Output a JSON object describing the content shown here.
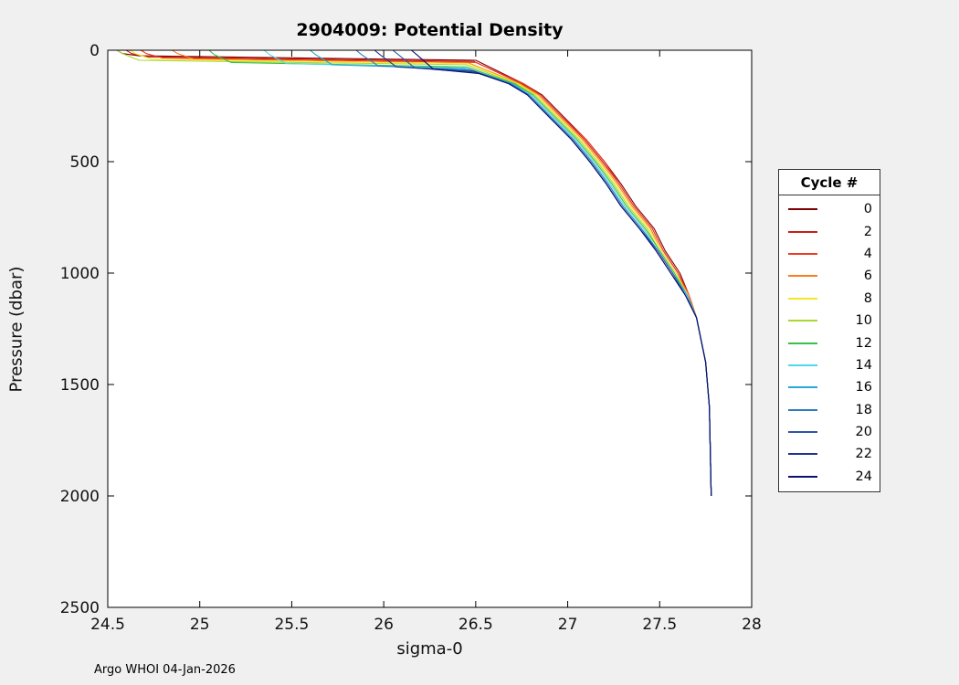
{
  "figure": {
    "title": "2904009: Potential Density",
    "xlabel": "sigma-0",
    "ylabel": "Pressure (dbar)",
    "footer": "Argo WHOI 04-Jan-2026",
    "background": "#f0f0f0",
    "plot_background": "#ffffff"
  },
  "legend": {
    "title": "Cycle #"
  },
  "chart_data": {
    "type": "line",
    "title": "2904009: Potential Density",
    "xlabel": "sigma-0",
    "ylabel": "Pressure (dbar)",
    "xlim": [
      24.5,
      28
    ],
    "ylim": [
      0,
      2500
    ],
    "y_reversed": true,
    "grid": false,
    "legend_position": "outside-right",
    "legend_title": "Cycle #",
    "x_ticks": [
      24.5,
      25,
      25.5,
      26,
      26.5,
      27,
      27.5,
      28
    ],
    "x_tick_labels": [
      "24.5",
      "25",
      "25.5",
      "26",
      "26.5",
      "27",
      "27.5",
      "28"
    ],
    "y_ticks": [
      0,
      500,
      1000,
      1500,
      2000,
      2500
    ],
    "y_tick_labels": [
      "0",
      "500",
      "1000",
      "1500",
      "2000",
      "2500"
    ],
    "series": [
      {
        "name": "0",
        "color": "#7f0000",
        "points": [
          [
            24.55,
            0
          ],
          [
            24.58,
            15
          ],
          [
            24.67,
            25
          ],
          [
            26.5,
            45
          ],
          [
            26.76,
            150
          ],
          [
            26.86,
            200
          ],
          [
            26.98,
            300
          ],
          [
            27.1,
            400
          ],
          [
            27.2,
            500
          ],
          [
            27.29,
            600
          ],
          [
            27.37,
            700
          ],
          [
            27.47,
            800
          ],
          [
            27.53,
            900
          ],
          [
            27.61,
            1000
          ],
          [
            27.66,
            1100
          ],
          [
            27.7,
            1200
          ],
          [
            27.75,
            1400
          ],
          [
            27.77,
            1600
          ],
          [
            27.78,
            2000
          ]
        ]
      },
      {
        "name": "2",
        "color": "#c62019",
        "points": [
          [
            24.6,
            0
          ],
          [
            24.63,
            15
          ],
          [
            24.72,
            30
          ],
          [
            26.49,
            50
          ],
          [
            26.75,
            150
          ],
          [
            26.85,
            200
          ],
          [
            26.97,
            300
          ],
          [
            27.09,
            400
          ],
          [
            27.19,
            500
          ],
          [
            27.28,
            600
          ],
          [
            27.36,
            700
          ],
          [
            27.46,
            800
          ],
          [
            27.52,
            900
          ],
          [
            27.6,
            1000
          ],
          [
            27.66,
            1100
          ],
          [
            27.7,
            1200
          ],
          [
            27.75,
            1400
          ],
          [
            27.77,
            1600
          ],
          [
            27.78,
            2000
          ]
        ]
      },
      {
        "name": "4",
        "color": "#ef3b22",
        "points": [
          [
            24.68,
            0
          ],
          [
            24.71,
            15
          ],
          [
            24.8,
            35
          ],
          [
            26.5,
            55
          ],
          [
            26.76,
            150
          ],
          [
            26.85,
            200
          ],
          [
            26.97,
            300
          ],
          [
            27.1,
            400
          ],
          [
            27.2,
            500
          ],
          [
            27.28,
            600
          ],
          [
            27.36,
            700
          ],
          [
            27.46,
            800
          ],
          [
            27.52,
            900
          ],
          [
            27.6,
            1000
          ],
          [
            27.66,
            1100
          ],
          [
            27.7,
            1200
          ],
          [
            27.75,
            1400
          ],
          [
            27.77,
            1600
          ],
          [
            27.78,
            2000
          ]
        ]
      },
      {
        "name": "6",
        "color": "#ff7a1c",
        "points": [
          [
            24.85,
            0
          ],
          [
            24.88,
            15
          ],
          [
            24.97,
            40
          ],
          [
            26.47,
            60
          ],
          [
            26.74,
            150
          ],
          [
            26.84,
            200
          ],
          [
            26.96,
            300
          ],
          [
            27.08,
            400
          ],
          [
            27.18,
            500
          ],
          [
            27.27,
            600
          ],
          [
            27.35,
            700
          ],
          [
            27.45,
            800
          ],
          [
            27.51,
            900
          ],
          [
            27.59,
            1000
          ],
          [
            27.66,
            1100
          ],
          [
            27.7,
            1200
          ],
          [
            27.75,
            1400
          ],
          [
            27.77,
            1600
          ],
          [
            27.78,
            2000
          ]
        ]
      },
      {
        "name": "8",
        "color": "#f5e62a",
        "points": [
          [
            24.62,
            0
          ],
          [
            24.65,
            15
          ],
          [
            24.74,
            40
          ],
          [
            26.46,
            60
          ],
          [
            26.73,
            150
          ],
          [
            26.83,
            200
          ],
          [
            26.95,
            300
          ],
          [
            27.07,
            400
          ],
          [
            27.17,
            500
          ],
          [
            27.26,
            600
          ],
          [
            27.34,
            700
          ],
          [
            27.44,
            800
          ],
          [
            27.51,
            900
          ],
          [
            27.59,
            1000
          ],
          [
            27.65,
            1100
          ],
          [
            27.7,
            1200
          ],
          [
            27.75,
            1400
          ],
          [
            27.77,
            1600
          ],
          [
            27.78,
            2000
          ]
        ]
      },
      {
        "name": "10",
        "color": "#a8d92e",
        "points": [
          [
            24.55,
            0
          ],
          [
            24.58,
            15
          ],
          [
            24.67,
            45
          ],
          [
            26.45,
            65
          ],
          [
            26.72,
            150
          ],
          [
            26.82,
            200
          ],
          [
            26.94,
            300
          ],
          [
            27.06,
            400
          ],
          [
            27.16,
            500
          ],
          [
            27.25,
            600
          ],
          [
            27.33,
            700
          ],
          [
            27.43,
            800
          ],
          [
            27.5,
            900
          ],
          [
            27.58,
            1000
          ],
          [
            27.65,
            1100
          ],
          [
            27.7,
            1200
          ],
          [
            27.75,
            1400
          ],
          [
            27.77,
            1600
          ],
          [
            27.78,
            2000
          ]
        ]
      },
      {
        "name": "12",
        "color": "#39c04a",
        "points": [
          [
            25.05,
            0
          ],
          [
            25.08,
            20
          ],
          [
            25.17,
            55
          ],
          [
            26.45,
            75
          ],
          [
            26.71,
            150
          ],
          [
            26.81,
            200
          ],
          [
            26.93,
            300
          ],
          [
            27.05,
            400
          ],
          [
            27.15,
            500
          ],
          [
            27.24,
            600
          ],
          [
            27.32,
            700
          ],
          [
            27.42,
            800
          ],
          [
            27.5,
            900
          ],
          [
            27.58,
            1000
          ],
          [
            27.65,
            1100
          ],
          [
            27.7,
            1200
          ],
          [
            27.75,
            1400
          ],
          [
            27.77,
            1600
          ],
          [
            27.78,
            2000
          ]
        ]
      },
      {
        "name": "14",
        "color": "#4fd8e8",
        "points": [
          [
            25.35,
            0
          ],
          [
            25.38,
            20
          ],
          [
            25.47,
            60
          ],
          [
            26.44,
            80
          ],
          [
            26.7,
            150
          ],
          [
            26.8,
            200
          ],
          [
            26.92,
            300
          ],
          [
            27.04,
            400
          ],
          [
            27.14,
            500
          ],
          [
            27.23,
            600
          ],
          [
            27.31,
            700
          ],
          [
            27.41,
            800
          ],
          [
            27.49,
            900
          ],
          [
            27.57,
            1000
          ],
          [
            27.65,
            1100
          ],
          [
            27.7,
            1200
          ],
          [
            27.75,
            1400
          ],
          [
            27.77,
            1600
          ],
          [
            27.78,
            2000
          ]
        ]
      },
      {
        "name": "16",
        "color": "#27a9d8",
        "points": [
          [
            25.6,
            0
          ],
          [
            25.63,
            20
          ],
          [
            25.72,
            65
          ],
          [
            26.46,
            85
          ],
          [
            26.7,
            150
          ],
          [
            26.79,
            200
          ],
          [
            26.91,
            300
          ],
          [
            27.03,
            400
          ],
          [
            27.13,
            500
          ],
          [
            27.22,
            600
          ],
          [
            27.3,
            700
          ],
          [
            27.4,
            800
          ],
          [
            27.49,
            900
          ],
          [
            27.57,
            1000
          ],
          [
            27.65,
            1100
          ],
          [
            27.7,
            1200
          ],
          [
            27.75,
            1400
          ],
          [
            27.77,
            1600
          ],
          [
            27.78,
            2000
          ]
        ]
      },
      {
        "name": "18",
        "color": "#2f7bbf",
        "points": [
          [
            25.85,
            0
          ],
          [
            25.88,
            20
          ],
          [
            25.97,
            70
          ],
          [
            26.48,
            90
          ],
          [
            26.69,
            150
          ],
          [
            26.79,
            200
          ],
          [
            26.91,
            300
          ],
          [
            27.03,
            400
          ],
          [
            27.13,
            500
          ],
          [
            27.22,
            600
          ],
          [
            27.3,
            700
          ],
          [
            27.4,
            800
          ],
          [
            27.49,
            900
          ],
          [
            27.57,
            1000
          ],
          [
            27.64,
            1100
          ],
          [
            27.7,
            1200
          ],
          [
            27.75,
            1400
          ],
          [
            27.77,
            1600
          ],
          [
            27.78,
            2000
          ]
        ]
      },
      {
        "name": "20",
        "color": "#2f54a8",
        "points": [
          [
            26.05,
            0
          ],
          [
            26.08,
            20
          ],
          [
            26.17,
            80
          ],
          [
            26.5,
            100
          ],
          [
            26.68,
            150
          ],
          [
            26.78,
            200
          ],
          [
            26.9,
            300
          ],
          [
            27.02,
            400
          ],
          [
            27.12,
            500
          ],
          [
            27.21,
            600
          ],
          [
            27.29,
            700
          ],
          [
            27.39,
            800
          ],
          [
            27.49,
            900
          ],
          [
            27.57,
            1000
          ],
          [
            27.64,
            1100
          ],
          [
            27.7,
            1200
          ],
          [
            27.75,
            1400
          ],
          [
            27.77,
            1600
          ],
          [
            27.78,
            2000
          ]
        ]
      },
      {
        "name": "22",
        "color": "#1f338f",
        "points": [
          [
            25.95,
            0
          ],
          [
            25.98,
            20
          ],
          [
            26.07,
            75
          ],
          [
            26.49,
            95
          ],
          [
            26.68,
            150
          ],
          [
            26.78,
            200
          ],
          [
            26.9,
            300
          ],
          [
            27.02,
            400
          ],
          [
            27.12,
            500
          ],
          [
            27.21,
            600
          ],
          [
            27.29,
            700
          ],
          [
            27.39,
            800
          ],
          [
            27.48,
            900
          ],
          [
            27.56,
            1000
          ],
          [
            27.64,
            1100
          ],
          [
            27.7,
            1200
          ],
          [
            27.75,
            1400
          ],
          [
            27.77,
            1600
          ],
          [
            27.78,
            2000
          ]
        ]
      },
      {
        "name": "24",
        "color": "#0a1172",
        "points": [
          [
            26.15,
            0
          ],
          [
            26.18,
            20
          ],
          [
            26.27,
            85
          ],
          [
            26.52,
            105
          ],
          [
            26.68,
            150
          ],
          [
            26.78,
            200
          ],
          [
            26.9,
            300
          ],
          [
            27.02,
            400
          ],
          [
            27.12,
            500
          ],
          [
            27.21,
            600
          ],
          [
            27.29,
            700
          ],
          [
            27.39,
            800
          ],
          [
            27.48,
            900
          ],
          [
            27.56,
            1000
          ],
          [
            27.64,
            1100
          ],
          [
            27.7,
            1200
          ],
          [
            27.75,
            1400
          ],
          [
            27.77,
            1600
          ],
          [
            27.78,
            2000
          ]
        ]
      }
    ]
  }
}
